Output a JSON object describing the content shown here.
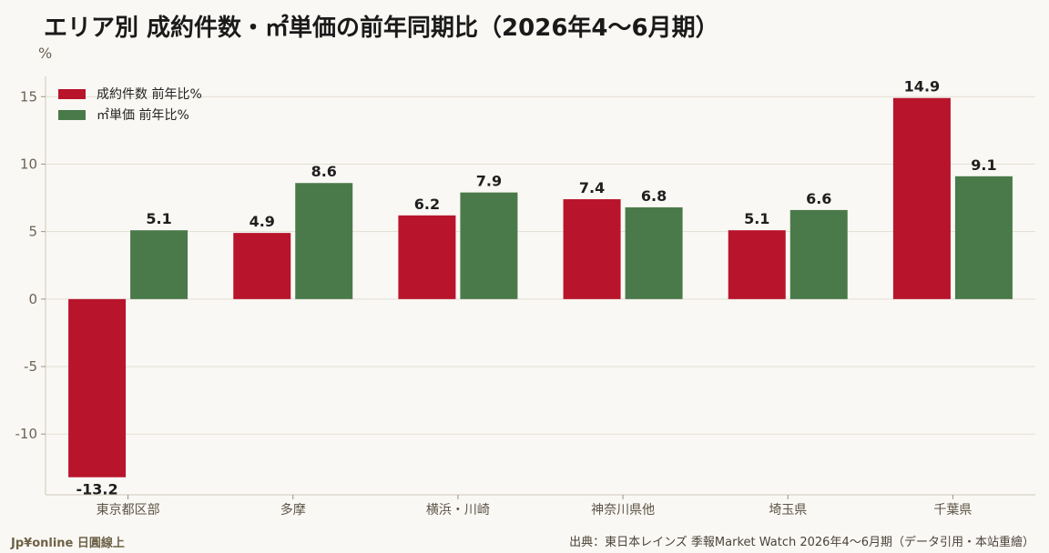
{
  "title": "エリア別 成約件数・㎡単価の前年同期比（2026年4〜6月期）",
  "source": "出典：東日本レインズ 季報Market Watch 2026年4〜6月期（データ引用・本站重繪）",
  "credit": "Jp¥online 日圓線上",
  "chart_data": {
    "type": "bar",
    "ylabel": "%",
    "xlabel": "",
    "ylim": [
      -14.5,
      16.5
    ],
    "yticks": [
      -10,
      -5,
      0,
      5,
      10,
      15
    ],
    "categories": [
      "東京都区部",
      "多摩",
      "横浜・川崎",
      "神奈川県他",
      "埼玉県",
      "千葉県"
    ],
    "series": [
      {
        "name": "成約件数 前年比%",
        "color": "#b8142c",
        "values": [
          -13.2,
          4.9,
          6.2,
          7.4,
          5.1,
          14.9
        ]
      },
      {
        "name": "㎡単価 前年比%",
        "color": "#4a7a4a",
        "values": [
          5.1,
          8.6,
          7.9,
          6.8,
          6.6,
          9.1
        ]
      }
    ],
    "legend_position": "top-left",
    "grid": true
  }
}
